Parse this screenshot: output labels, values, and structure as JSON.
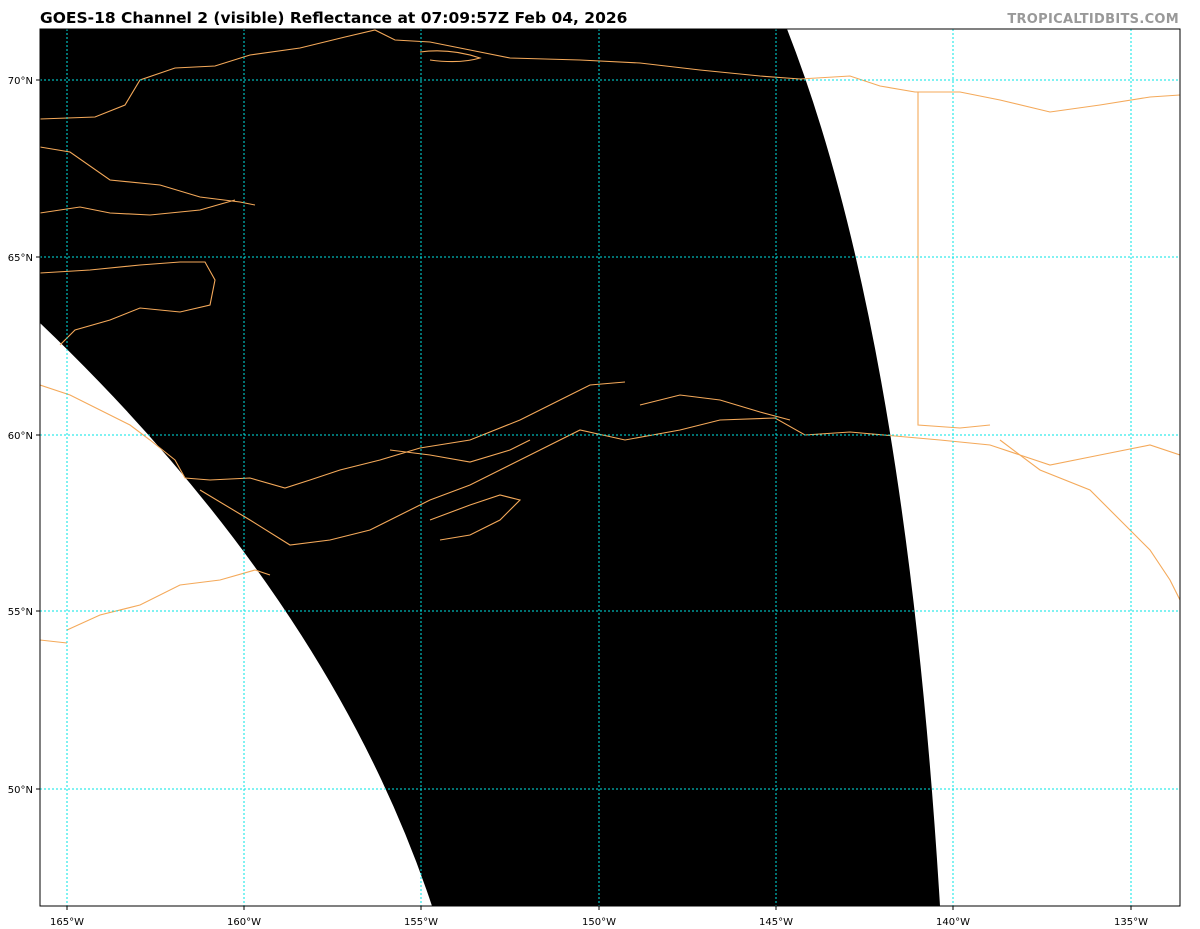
{
  "title": "GOES-18 Channel 2 (visible) Reflectance at 07:09:57Z Feb 04, 2026",
  "watermark": "TROPICALTIDBITS.COM",
  "map": {
    "projection": "satellite imagery with lat/lon grid",
    "colors": {
      "imagery": "#000000",
      "no_data": "#ffffff",
      "coastline": "#f4a95a",
      "gridline": "#00e5e5",
      "frame": "#000000"
    },
    "gridlines": "dotted",
    "longitude_labels": [
      "165°W",
      "160°W",
      "155°W",
      "150°W",
      "145°W",
      "140°W",
      "135°W"
    ],
    "latitude_labels": [
      "70°N",
      "65°N",
      "60°N",
      "55°N",
      "50°N"
    ]
  }
}
